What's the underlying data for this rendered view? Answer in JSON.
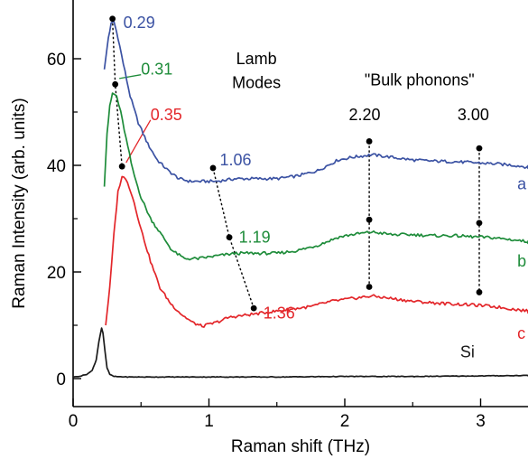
{
  "chart_data": {
    "type": "line",
    "xlabel": "Raman shift (THz)",
    "ylabel": "Raman Intensity (arb. units)",
    "xlim": [
      0,
      3.4
    ],
    "ylim": [
      -3,
      70
    ],
    "xticks": [
      0,
      1,
      2,
      3
    ],
    "xtick_labels": [
      "0",
      "1",
      "2",
      "3"
    ],
    "yticks": [
      0,
      20,
      40,
      60
    ],
    "ytick_labels": [
      "0",
      "20",
      "40",
      "60"
    ],
    "grid": false,
    "legend": "none",
    "series": [
      {
        "name": "a",
        "color": "#3b52a3",
        "x": [
          0.23,
          0.26,
          0.28,
          0.3,
          0.33,
          0.37,
          0.42,
          0.48,
          0.55,
          0.62,
          0.7,
          0.78,
          0.86,
          0.95,
          1.05,
          1.2,
          1.35,
          1.5,
          1.65,
          1.8,
          1.95,
          2.05,
          2.2,
          2.35,
          2.5,
          2.65,
          2.8,
          2.95,
          3.1,
          3.25,
          3.4
        ],
        "y": [
          58,
          64,
          66.5,
          67,
          64,
          59,
          53,
          48,
          44,
          41,
          39,
          37.5,
          37,
          37,
          37,
          37.5,
          37.5,
          37.5,
          38,
          39,
          41,
          41.5,
          42,
          41.5,
          41,
          40.8,
          40.7,
          40.5,
          40.3,
          40,
          39.5
        ]
      },
      {
        "name": "b",
        "color": "#1e8c3a",
        "x": [
          0.23,
          0.25,
          0.27,
          0.29,
          0.32,
          0.35,
          0.39,
          0.44,
          0.5,
          0.57,
          0.65,
          0.73,
          0.82,
          0.92,
          1.05,
          1.2,
          1.35,
          1.5,
          1.65,
          1.8,
          1.95,
          2.05,
          2.2,
          2.35,
          2.5,
          2.65,
          2.8,
          2.95,
          3.1,
          3.25,
          3.4
        ],
        "y": [
          36,
          46,
          51,
          53.5,
          53,
          50,
          45,
          39,
          34,
          30,
          27,
          24,
          22.5,
          22.5,
          23,
          23.5,
          23.5,
          23.5,
          24,
          25,
          26.5,
          27,
          27.5,
          27,
          27,
          26.8,
          26.8,
          26.6,
          26.4,
          26,
          25.5
        ]
      },
      {
        "name": "c",
        "color": "#e3262a",
        "x": [
          0.24,
          0.27,
          0.3,
          0.33,
          0.36,
          0.4,
          0.45,
          0.5,
          0.57,
          0.64,
          0.72,
          0.8,
          0.88,
          0.95,
          1.05,
          1.15,
          1.3,
          1.45,
          1.6,
          1.75,
          1.9,
          2.05,
          2.2,
          2.35,
          2.5,
          2.65,
          2.8,
          2.95,
          3.1,
          3.25,
          3.4
        ],
        "y": [
          10,
          17,
          27,
          35,
          38,
          37,
          33,
          28,
          22,
          17,
          14,
          12,
          10.5,
          9.8,
          10.5,
          11.5,
          12,
          12.5,
          13,
          13.5,
          14.5,
          15,
          15.5,
          15,
          14.5,
          14.2,
          14,
          13.8,
          13.5,
          13,
          12.5
        ]
      },
      {
        "name": "Si",
        "color": "#1a1a1a",
        "x": [
          0.0,
          0.06,
          0.1,
          0.14,
          0.17,
          0.19,
          0.21,
          0.22,
          0.235,
          0.25,
          0.27,
          0.3,
          0.4,
          0.6,
          1.0,
          1.5,
          2.0,
          2.5,
          3.0,
          3.4
        ],
        "y": [
          0.3,
          0.5,
          0.8,
          1.5,
          3.5,
          7,
          9.5,
          8.5,
          5,
          2,
          0.8,
          0.4,
          0.3,
          0.3,
          0.3,
          0.3,
          0.4,
          0.4,
          0.5,
          0.6
        ]
      }
    ],
    "curve_labels": [
      {
        "text": "a",
        "x": 3.27,
        "y": 35.5,
        "color": "#3b52a3"
      },
      {
        "text": "b",
        "x": 3.27,
        "y": 21,
        "color": "#1e8c3a"
      },
      {
        "text": "c",
        "x": 3.27,
        "y": 7.5,
        "color": "#e3262a"
      },
      {
        "text": "Si",
        "x": 2.85,
        "y": 4,
        "color": "#1a1a1a"
      }
    ],
    "annotations": [
      {
        "text": "Lamb",
        "x": 1.35,
        "y": 59,
        "color": "#000000"
      },
      {
        "text": "Modes",
        "x": 1.35,
        "y": 54.5,
        "color": "#000000"
      },
      {
        "text": "\"Bulk phonons\"",
        "x": 2.55,
        "y": 55,
        "color": "#000000"
      }
    ],
    "markers": [
      {
        "label": "0.29",
        "x": 0.29,
        "y": 67.5,
        "color": "#3b52a3",
        "lx": 0.37,
        "ly": 65.8
      },
      {
        "label": "0.31",
        "x": 0.31,
        "y": 55.2,
        "color": "#1e8c3a",
        "lx": 0.5,
        "ly": 57
      },
      {
        "label": "0.35",
        "x": 0.36,
        "y": 39.8,
        "color": "#e3262a",
        "lx": 0.57,
        "ly": 48.5
      },
      {
        "label": "1.06",
        "x": 1.03,
        "y": 39.5,
        "color": "#3b52a3",
        "lx": 1.08,
        "ly": 40
      },
      {
        "label": "1.19",
        "x": 1.15,
        "y": 26.5,
        "color": "#1e8c3a",
        "lx": 1.22,
        "ly": 25.5
      },
      {
        "label": "1.36",
        "x": 1.33,
        "y": 13.2,
        "color": "#e3262a",
        "lx": 1.4,
        "ly": 11.3
      },
      {
        "label": "2.20",
        "x": 2.18,
        "y": 44.5,
        "color": "#000000",
        "lx": 2.03,
        "ly": 48.5
      },
      {
        "label": "3.00",
        "x": 2.99,
        "y": 43.2,
        "color": "#000000",
        "lx": 2.83,
        "ly": 48.5
      }
    ],
    "dot_points": [
      {
        "x": 0.29,
        "y": 67.5
      },
      {
        "x": 0.31,
        "y": 55.2
      },
      {
        "x": 0.36,
        "y": 39.8
      },
      {
        "x": 1.03,
        "y": 39.5
      },
      {
        "x": 1.15,
        "y": 26.5
      },
      {
        "x": 1.33,
        "y": 13.2
      },
      {
        "x": 2.18,
        "y": 44.5
      },
      {
        "x": 2.18,
        "y": 29.8
      },
      {
        "x": 2.18,
        "y": 17.2
      },
      {
        "x": 2.99,
        "y": 43.2
      },
      {
        "x": 2.99,
        "y": 29.2
      },
      {
        "x": 2.99,
        "y": 16.2
      }
    ],
    "guide_lines": [
      {
        "points": [
          [
            0.29,
            67.5
          ],
          [
            0.31,
            55.2
          ],
          [
            0.36,
            39.8
          ]
        ]
      },
      {
        "points": [
          [
            1.03,
            39.5
          ],
          [
            1.15,
            26.5
          ],
          [
            1.33,
            13.2
          ]
        ]
      },
      {
        "points": [
          [
            2.18,
            44.5
          ],
          [
            2.18,
            29.8
          ],
          [
            2.18,
            17.2
          ]
        ]
      },
      {
        "points": [
          [
            2.99,
            43.2
          ],
          [
            2.99,
            29.2
          ],
          [
            2.99,
            16.2
          ]
        ]
      }
    ],
    "leader_lines": [
      {
        "from": [
          0.34,
          56.3
        ],
        "to": [
          0.5,
          57
        ],
        "color": "#1e8c3a"
      },
      {
        "from": [
          0.39,
          40.5
        ],
        "to": [
          0.57,
          48.5
        ],
        "color": "#e3262a"
      }
    ]
  }
}
